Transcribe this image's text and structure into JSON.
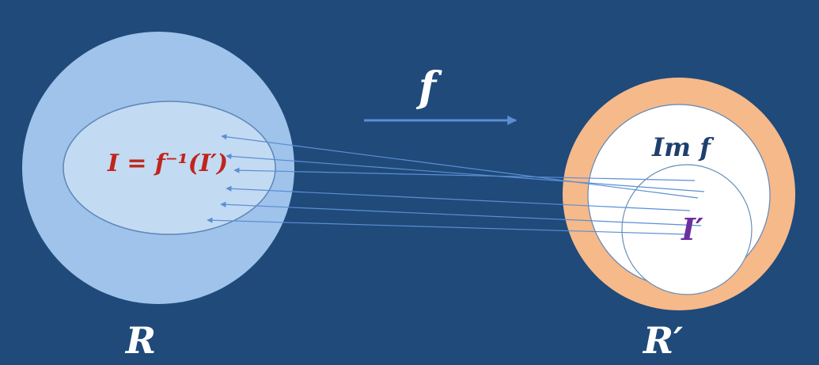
{
  "labels": {
    "map": "f",
    "domain": "R",
    "codomain": "R′",
    "preimage": "I = f⁻¹(I′)",
    "image": "Im f",
    "ideal": "I′"
  },
  "colors": {
    "background": "#1f4a7a",
    "domain_fill": "#9fc3ea",
    "preimage_fill": "#c3daf3",
    "codomain_ring": "#f6b98a",
    "image_fill": "#ffffff",
    "arrow": "#5b8fd4",
    "preimage_text": "#c0251b",
    "image_text": "#1f3f6e",
    "ideal_text": "#6b2fa0",
    "label_text": "#ffffff"
  }
}
